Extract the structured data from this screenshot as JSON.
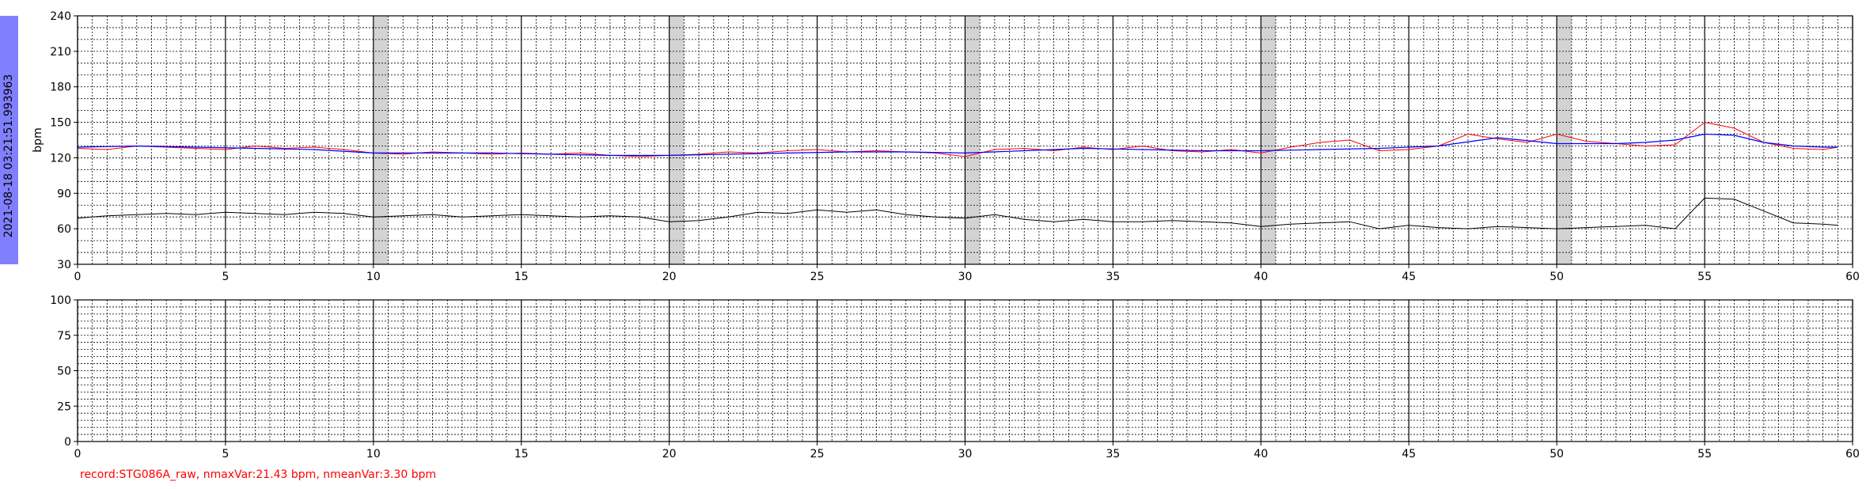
{
  "timestamp": "2021-08-18 03:21:51.993963",
  "footer_text": "record:STG086A_raw, nmaxVar:21.43 bpm, nmeanVar:3.30 bpm",
  "colors": {
    "sidebar": "#8080ff",
    "fhr": "#ff0000",
    "baseline": "#0000ff",
    "mhr": "#000000",
    "shade": "#d3d3d3",
    "footer": "#ff0000"
  },
  "chart_data": [
    {
      "type": "line",
      "ylabel": "bpm",
      "xlim": [
        0,
        60
      ],
      "ylim": [
        30,
        240
      ],
      "xticks": [
        0,
        5,
        10,
        15,
        20,
        25,
        30,
        35,
        40,
        45,
        50,
        55,
        60
      ],
      "yticks": [
        30,
        60,
        90,
        120,
        150,
        180,
        210,
        240
      ],
      "grid": true,
      "shaded_bands": [
        [
          10,
          10.5
        ],
        [
          20,
          20.5
        ],
        [
          30,
          30.5
        ],
        [
          40,
          40.5
        ],
        [
          50,
          50.5
        ]
      ],
      "series": [
        {
          "key": "fhr",
          "color": "#ff0000",
          "x": [
            0,
            1,
            2,
            3,
            4,
            5,
            6,
            7,
            8,
            9,
            10,
            11,
            12,
            13,
            14,
            15,
            16,
            17,
            18,
            19,
            20,
            21,
            22,
            23,
            24,
            25,
            26,
            27,
            28,
            29,
            30,
            31,
            32,
            33,
            34,
            35,
            36,
            37,
            38,
            39,
            40,
            41,
            42,
            43,
            44,
            45,
            46,
            47,
            48,
            49,
            50,
            51,
            52,
            53,
            54,
            55,
            56,
            57,
            58,
            59,
            59.5
          ],
          "y": [
            128,
            127,
            130,
            129,
            128,
            127,
            130,
            128,
            129,
            127,
            124,
            123,
            125,
            124,
            123,
            124,
            123,
            124,
            122,
            121,
            122,
            123,
            125,
            124,
            126,
            127,
            125,
            126,
            125,
            124,
            121,
            127,
            128,
            126,
            129,
            127,
            130,
            126,
            125,
            127,
            124,
            129,
            133,
            135,
            126,
            127,
            130,
            140,
            136,
            133,
            140,
            134,
            132,
            130,
            131,
            150,
            145,
            133,
            128,
            127,
            129
          ]
        },
        {
          "key": "baseline",
          "color": "#0000ff",
          "x": [
            0,
            2,
            4,
            6,
            8,
            10,
            12,
            14,
            16,
            18,
            20,
            22,
            24,
            26,
            28,
            30,
            32,
            34,
            36,
            38,
            40,
            42,
            44,
            46,
            48,
            50,
            52,
            53,
            54,
            55,
            56,
            57,
            58,
            59,
            59.5
          ],
          "y": [
            129,
            130,
            129,
            128,
            127,
            124,
            124,
            124,
            123,
            122,
            122,
            123,
            124,
            125,
            125,
            124,
            126,
            128,
            127,
            126,
            126,
            127,
            128,
            130,
            137,
            132,
            132,
            133,
            135,
            140,
            139,
            133,
            130,
            129,
            129
          ]
        },
        {
          "key": "mhr",
          "color": "#000000",
          "x": [
            0,
            1,
            2,
            3,
            4,
            5,
            6,
            7,
            8,
            9,
            10,
            11,
            12,
            13,
            14,
            15,
            16,
            17,
            18,
            19,
            20,
            21,
            22,
            23,
            24,
            25,
            26,
            27,
            28,
            29,
            30,
            31,
            32,
            33,
            34,
            35,
            36,
            37,
            38,
            39,
            40,
            41,
            42,
            43,
            44,
            45,
            46,
            47,
            48,
            49,
            50,
            51,
            52,
            53,
            54,
            55,
            56,
            57,
            58,
            59,
            59.5
          ],
          "y": [
            69,
            71,
            72,
            73,
            72,
            74,
            73,
            72,
            74,
            73,
            70,
            71,
            72,
            70,
            71,
            72,
            71,
            70,
            71,
            70,
            66,
            67,
            70,
            74,
            73,
            76,
            74,
            76,
            72,
            70,
            69,
            72,
            68,
            66,
            68,
            66,
            66,
            67,
            66,
            65,
            62,
            64,
            65,
            66,
            60,
            63,
            61,
            60,
            62,
            61,
            60,
            61,
            62,
            63,
            60,
            86,
            85,
            75,
            65,
            64,
            63
          ]
        }
      ]
    },
    {
      "type": "line",
      "ylabel": "",
      "xlim": [
        0,
        60
      ],
      "ylim": [
        0,
        100
      ],
      "xticks": [
        0,
        5,
        10,
        15,
        20,
        25,
        30,
        35,
        40,
        45,
        50,
        55,
        60
      ],
      "yticks": [
        0,
        25,
        50,
        75,
        100
      ],
      "grid": true,
      "series": []
    }
  ]
}
